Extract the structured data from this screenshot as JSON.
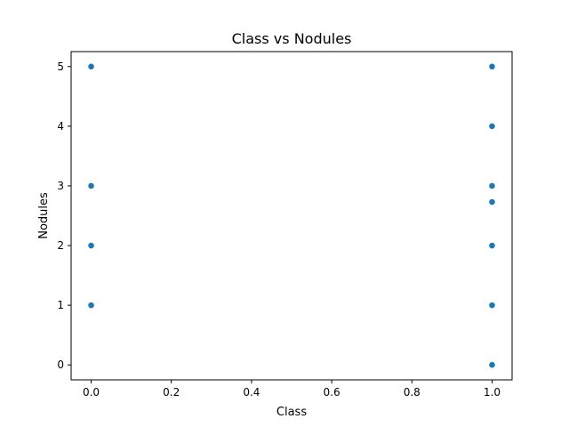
{
  "chart_data": {
    "type": "scatter",
    "title": "Class vs Nodules",
    "xlabel": "Class",
    "ylabel": "Nodules",
    "xlim": [
      -0.05,
      1.05
    ],
    "ylim": [
      -0.25,
      5.25
    ],
    "xticks": [
      0.0,
      0.2,
      0.4,
      0.6,
      0.8,
      1.0
    ],
    "xtick_labels": [
      "0.0",
      "0.2",
      "0.4",
      "0.6",
      "0.8",
      "1.0"
    ],
    "yticks": [
      0,
      1,
      2,
      3,
      4,
      5
    ],
    "ytick_labels": [
      "0",
      "1",
      "2",
      "3",
      "4",
      "5"
    ],
    "grid": false,
    "marker_color": "#1f77b4",
    "points": [
      {
        "x": 0,
        "y": 5
      },
      {
        "x": 0,
        "y": 3
      },
      {
        "x": 0,
        "y": 2
      },
      {
        "x": 0,
        "y": 1
      },
      {
        "x": 1,
        "y": 5
      },
      {
        "x": 1,
        "y": 4
      },
      {
        "x": 1,
        "y": 3
      },
      {
        "x": 1,
        "y": 2.73
      },
      {
        "x": 1,
        "y": 2
      },
      {
        "x": 1,
        "y": 1
      },
      {
        "x": 1,
        "y": 0
      }
    ]
  }
}
